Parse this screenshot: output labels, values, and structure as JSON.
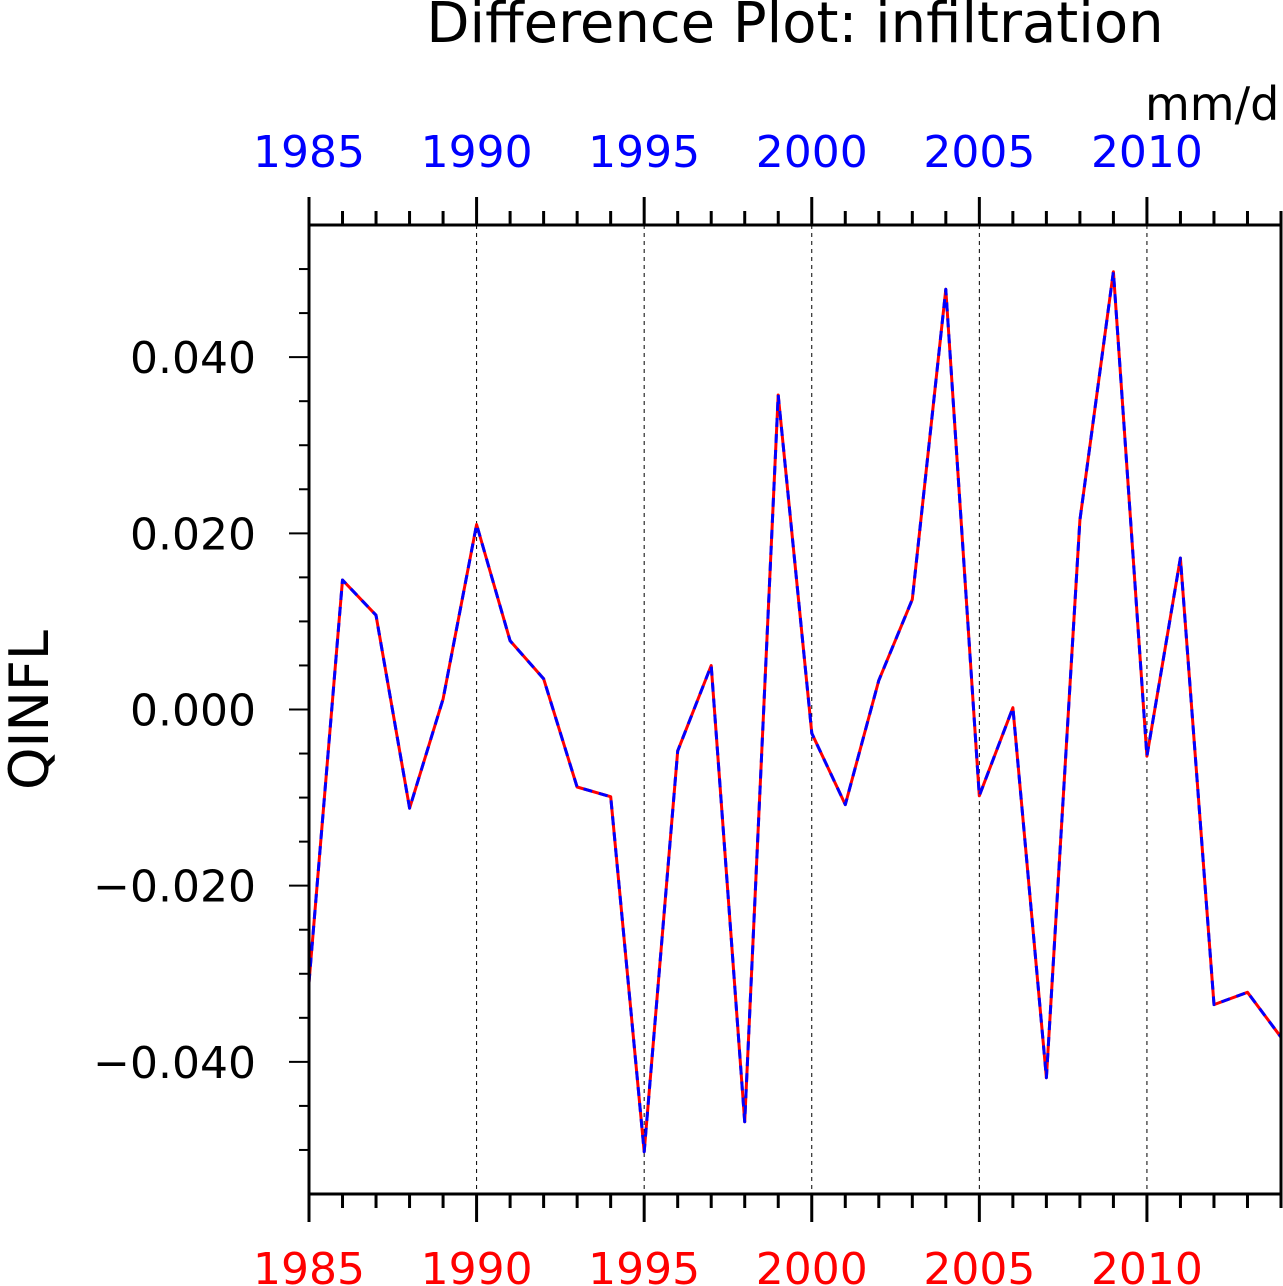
{
  "chart_data": {
    "type": "line",
    "title": "Difference Plot: infiltration",
    "units": "mm/d",
    "ylabel": "QINFL",
    "xlabel": "",
    "xlim": [
      1985,
      2014
    ],
    "ylim": [
      -0.055,
      0.055
    ],
    "x_ticks": [
      1985,
      1990,
      1995,
      2000,
      2005,
      2010
    ],
    "y_ticks": [
      "0.040",
      "0.020",
      "0.000",
      "−0.020",
      "−0.040"
    ],
    "y_tick_values": [
      0.04,
      0.02,
      0.0,
      -0.02,
      -0.04
    ],
    "grid": "vertical dashed at major x ticks",
    "bottom_axis_color": "#ff0000",
    "top_axis_color": "#0000ff",
    "x": [
      1985,
      1986,
      1987,
      1988,
      1989,
      1990,
      1991,
      1992,
      1993,
      1994,
      1995,
      1996,
      1997,
      1998,
      1999,
      2000,
      2001,
      2002,
      2003,
      2004,
      2005,
      2006,
      2007,
      2008,
      2009,
      2010,
      2011,
      2012,
      2013,
      2014
    ],
    "series": [
      {
        "color": "#ff0000",
        "style": "solid",
        "values": [
          -0.031,
          0.0147,
          0.0107,
          -0.0112,
          0.0012,
          0.021,
          0.0078,
          0.0035,
          -0.0088,
          -0.0099,
          -0.0502,
          -0.0047,
          0.005,
          -0.0468,
          0.0357,
          -0.0027,
          -0.0108,
          0.0033,
          0.0125,
          0.0477,
          -0.0098,
          0.0002,
          -0.0418,
          0.0215,
          0.0497,
          -0.0053,
          0.0172,
          -0.0335,
          -0.0321,
          -0.0372
        ]
      },
      {
        "color": "#0000ff",
        "style": "dashed",
        "values": [
          -0.031,
          0.0147,
          0.0107,
          -0.0112,
          0.0012,
          0.021,
          0.0078,
          0.0035,
          -0.0088,
          -0.0099,
          -0.0502,
          -0.0047,
          0.005,
          -0.0468,
          0.0357,
          -0.0027,
          -0.0108,
          0.0033,
          0.0125,
          0.0477,
          -0.0098,
          0.0002,
          -0.0418,
          0.0215,
          0.0497,
          -0.0053,
          0.0172,
          -0.0335,
          -0.0321,
          -0.0372
        ]
      }
    ]
  }
}
